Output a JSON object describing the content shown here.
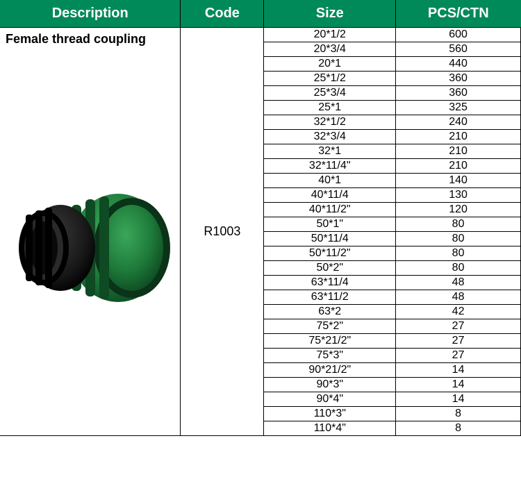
{
  "header": {
    "description": "Description",
    "code": "Code",
    "size": "Size",
    "pcs": "PCS/CTN"
  },
  "colors": {
    "header_bg": "#008a5a",
    "header_text": "#ffffff",
    "border": "#000000",
    "coupling_green": "#1e7a3a",
    "coupling_dark": "#171717"
  },
  "product": {
    "description": "Female thread coupling",
    "code": "R1003"
  },
  "rows": [
    {
      "size": "20*1/2",
      "pcs": "600"
    },
    {
      "size": "20*3/4",
      "pcs": "560"
    },
    {
      "size": "20*1",
      "pcs": "440"
    },
    {
      "size": "25*1/2",
      "pcs": "360"
    },
    {
      "size": "25*3/4",
      "pcs": "360"
    },
    {
      "size": "25*1",
      "pcs": "325"
    },
    {
      "size": "32*1/2",
      "pcs": "240"
    },
    {
      "size": "32*3/4",
      "pcs": "210"
    },
    {
      "size": "32*1",
      "pcs": "210"
    },
    {
      "size": "32*11/4\"",
      "pcs": "210"
    },
    {
      "size": "40*1",
      "pcs": "140"
    },
    {
      "size": "40*11/4",
      "pcs": "130"
    },
    {
      "size": "40*11/2\"",
      "pcs": "120"
    },
    {
      "size": "50*1\"",
      "pcs": "80"
    },
    {
      "size": "50*11/4",
      "pcs": "80"
    },
    {
      "size": "50*11/2\"",
      "pcs": "80"
    },
    {
      "size": "50*2\"",
      "pcs": "80"
    },
    {
      "size": "63*11/4",
      "pcs": "48"
    },
    {
      "size": "63*11/2",
      "pcs": "48"
    },
    {
      "size": "63*2",
      "pcs": "42"
    },
    {
      "size": "75*2\"",
      "pcs": "27"
    },
    {
      "size": "75*21/2\"",
      "pcs": "27"
    },
    {
      "size": "75*3\"",
      "pcs": "27"
    },
    {
      "size": "90*21/2\"",
      "pcs": "14"
    },
    {
      "size": "90*3\"",
      "pcs": "14"
    },
    {
      "size": "90*4\"",
      "pcs": "14"
    },
    {
      "size": "110*3\"",
      "pcs": "8"
    },
    {
      "size": "110*4\"",
      "pcs": "8"
    }
  ]
}
